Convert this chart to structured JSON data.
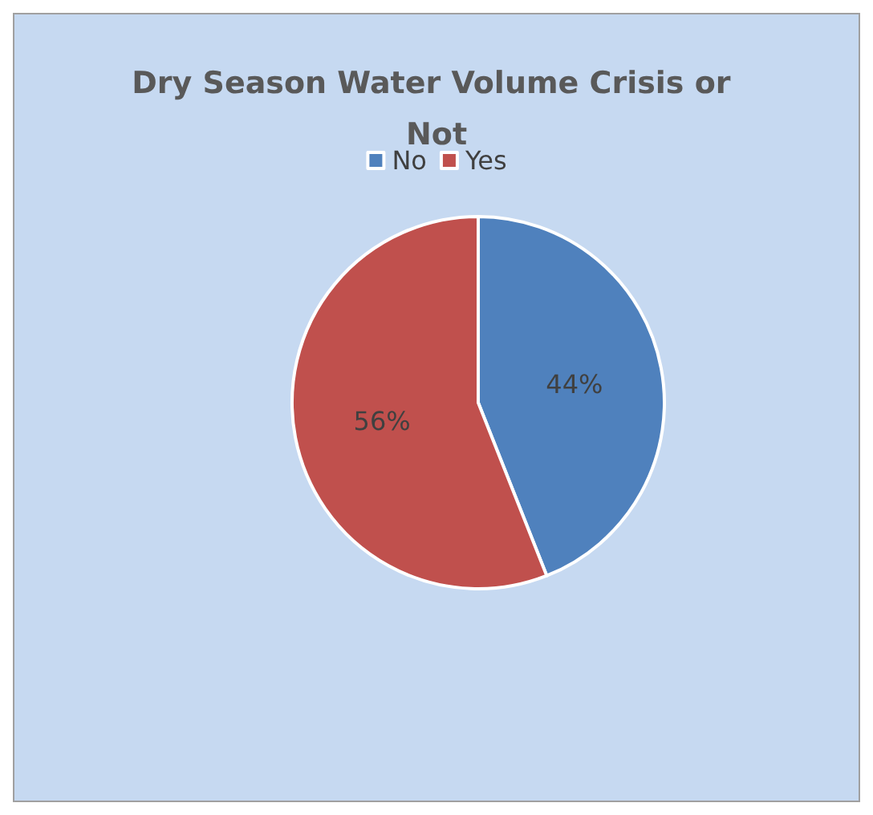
{
  "chart_data": {
    "type": "pie",
    "title": "Dry Season Water Volume Crisis or Not",
    "categories": [
      "No",
      "Yes"
    ],
    "values": [
      44,
      56
    ],
    "value_labels": [
      "44%",
      "56%"
    ],
    "colors": [
      "#4f81bd",
      "#c0504d"
    ],
    "legend": "top"
  }
}
